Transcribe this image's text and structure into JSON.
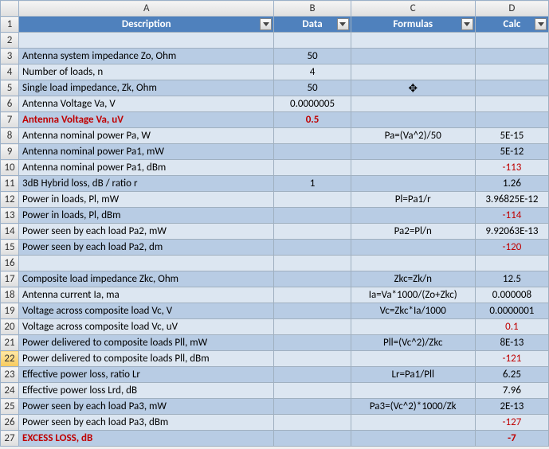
{
  "columns": {
    "row_width": 23,
    "A_width": 320,
    "B_width": 96,
    "C_width": 156,
    "D_width": 92,
    "A_label": "A",
    "B_label": "B",
    "C_label": "C",
    "D_label": "D"
  },
  "headers": {
    "A": "Description",
    "B": "Data",
    "C": "Formulas",
    "D": "Calc"
  },
  "rows": {
    "r2": {
      "n": "2",
      "A": "",
      "B": "",
      "C": "",
      "D": ""
    },
    "r3": {
      "n": "3",
      "A": "Antenna system impedance Zo, Ohm",
      "B": "50",
      "C": "",
      "D": ""
    },
    "r4": {
      "n": "4",
      "A": "Number of loads, n",
      "B": "4",
      "C": "",
      "D": ""
    },
    "r5": {
      "n": "5",
      "A": "Single load impedance, Zk, Ohm",
      "B": "50",
      "C": "",
      "D": ""
    },
    "r6": {
      "n": "6",
      "A": "Antenna Voltage Va, V",
      "B": "0.0000005",
      "C": "",
      "D": ""
    },
    "r7": {
      "n": "7",
      "A": "Antenna Voltage Va, uV",
      "B": "0.5",
      "C": "",
      "D": ""
    },
    "r8": {
      "n": "8",
      "A": "Antenna nominal power Pa, W",
      "B": "",
      "C": "Pa=(Va^2)/50",
      "D": "5E-15"
    },
    "r9": {
      "n": "9",
      "A": "Antenna nominal power Pa1, mW",
      "B": "",
      "C": "",
      "D": "5E-12"
    },
    "r10": {
      "n": "10",
      "A": "Antenna nominal power Pa1, dBm",
      "B": "",
      "C": "",
      "D": "-113"
    },
    "r11": {
      "n": "11",
      "A": "3dB Hybrid loss, dB / ratio r",
      "B": "1",
      "C": "",
      "D": "1.26"
    },
    "r12": {
      "n": "12",
      "A": "Power in loads, Pl, mW",
      "B": "",
      "C": "Pl=Pa1/r",
      "D": "3.96825E-12"
    },
    "r13": {
      "n": "13",
      "A": "Power in loads, Pl, dBm",
      "B": "",
      "C": "",
      "D": "-114"
    },
    "r14": {
      "n": "14",
      "A": "Power seen by each load Pa2, mW",
      "B": "",
      "C": "Pa2=Pl/n",
      "D": "9.92063E-13"
    },
    "r15": {
      "n": "15",
      "A": "Power seen by each load Pa2, dm",
      "B": "",
      "C": "",
      "D": "-120"
    },
    "r16": {
      "n": "16",
      "A": "",
      "B": "",
      "C": "",
      "D": ""
    },
    "r17": {
      "n": "17",
      "A": "Composite load impedance Zkc, Ohm",
      "B": "",
      "C": "Zkc=Zk/n",
      "D": "12.5"
    },
    "r18": {
      "n": "18",
      "A": "Antenna current Ia, ma",
      "B": "",
      "C": "Ia=Va*1000/(Zo+Zkc)",
      "D": "0.000008"
    },
    "r19": {
      "n": "19",
      "A": "Voltage across composite load Vc, V",
      "B": "",
      "C": "Vc=Zkc*Ia/1000",
      "D": "0.0000001"
    },
    "r20": {
      "n": "20",
      "A": "Voltage across composite load Vc, uV",
      "B": "",
      "C": "",
      "D": "0.1"
    },
    "r21": {
      "n": "21",
      "A": "Power delivered to composite loads Pll, mW",
      "B": "",
      "C": "Pll=(Vc^2)/Zkc",
      "D": "8E-13"
    },
    "r22": {
      "n": "22",
      "A": "Power delivered to composite loads Pll, dBm",
      "B": "",
      "C": "",
      "D": "-121"
    },
    "r23": {
      "n": "23",
      "A": "Effective power loss, ratio Lr",
      "B": "",
      "C": "Lr=Pa1/Pll",
      "D": "6.25"
    },
    "r24": {
      "n": "24",
      "A": "Effective power loss Lrd, dB",
      "B": "",
      "C": "",
      "D": "7.96"
    },
    "r25": {
      "n": "25",
      "A": "Power seen by each load Pa3, mW",
      "B": "",
      "C": "Pa3=(Vc^2)*1000/Zk",
      "D": "2E-13"
    },
    "r26": {
      "n": "26",
      "A": "Power seen by each load Pa3, dBm",
      "B": "",
      "C": "",
      "D": "-127"
    },
    "r27": {
      "n": "27",
      "A": "EXCESS LOSS, dB",
      "B": "",
      "C": "",
      "D": "-7"
    }
  },
  "style": {
    "red_cells": [
      "r7A",
      "r7B",
      "r10D",
      "r13D",
      "r15D",
      "r20D",
      "r22D",
      "r26D",
      "r27A",
      "r27D"
    ],
    "bold_cells": [
      "r7A",
      "r7B",
      "r27A",
      "r27D"
    ],
    "selected_row": "22"
  }
}
